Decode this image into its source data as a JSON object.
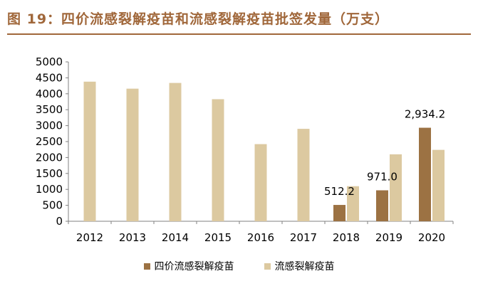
{
  "title": "图 19：四价流感裂解疫苗和流感裂解疫苗批签发量（万支）",
  "chart_data": {
    "type": "bar",
    "categories": [
      "2012",
      "2013",
      "2014",
      "2015",
      "2016",
      "2017",
      "2018",
      "2019",
      "2020"
    ],
    "series": [
      {
        "name": "四价流感裂解疫苗",
        "color": "#9c7243",
        "values": [
          null,
          null,
          null,
          null,
          null,
          null,
          512.2,
          971.0,
          2934.2
        ],
        "labels": [
          "",
          "",
          "",
          "",
          "",
          "",
          "512.2",
          "971.0",
          "2,934.2"
        ]
      },
      {
        "name": "流感裂解疫苗",
        "color": "#dcc9a0",
        "values": [
          4380,
          4160,
          4340,
          3830,
          2420,
          2900,
          1100,
          2100,
          2240
        ]
      }
    ],
    "yticks": [
      "0",
      "500",
      "1000",
      "1500",
      "2000",
      "2500",
      "3000",
      "3500",
      "4000",
      "4500",
      "5000"
    ],
    "ylim": [
      0,
      5000
    ],
    "grid": false,
    "legend": "bottom"
  }
}
